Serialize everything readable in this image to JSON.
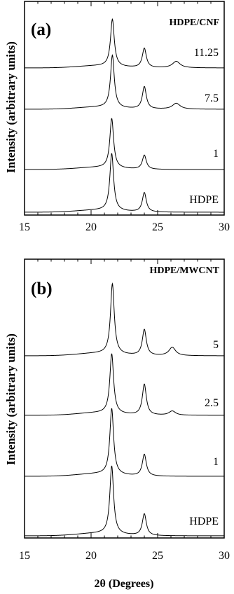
{
  "chart_data": [
    {
      "type": "line",
      "panel_label": "(a)",
      "title": "HDPE/CNF",
      "ylabel": "Intensity (arbitrary units)",
      "xlim": [
        15,
        30
      ],
      "xticks": [
        15,
        20,
        25,
        30
      ],
      "series": [
        {
          "name": "11.25",
          "peaks": [
            {
              "x": 21.6,
              "height": 0.8,
              "width": 0.17
            },
            {
              "x": 24.0,
              "height": 0.33,
              "width": 0.18
            },
            {
              "x": 26.4,
              "height": 0.11,
              "width": 0.35
            }
          ]
        },
        {
          "name": "7.5",
          "peaks": [
            {
              "x": 21.6,
              "height": 0.89,
              "width": 0.17
            },
            {
              "x": 24.0,
              "height": 0.38,
              "width": 0.18
            },
            {
              "x": 26.4,
              "height": 0.1,
              "width": 0.35
            }
          ]
        },
        {
          "name": "1",
          "peaks": [
            {
              "x": 21.55,
              "height": 0.84,
              "width": 0.17
            },
            {
              "x": 24.0,
              "height": 0.24,
              "width": 0.18
            }
          ]
        },
        {
          "name": "HDPE",
          "peaks": [
            {
              "x": 21.55,
              "height": 0.97,
              "width": 0.17
            },
            {
              "x": 24.0,
              "height": 0.33,
              "width": 0.18
            }
          ]
        }
      ]
    },
    {
      "type": "line",
      "panel_label": "(b)",
      "title": "HDPE/MWCNT",
      "ylabel": "Intensity (arbitrary units)",
      "xlabel": "2θ (Degrees)",
      "xlim": [
        15,
        30
      ],
      "xticks": [
        15,
        20,
        25,
        30
      ],
      "series": [
        {
          "name": "5",
          "peaks": [
            {
              "x": 21.6,
              "height": 1.0,
              "width": 0.17
            },
            {
              "x": 24.0,
              "height": 0.37,
              "width": 0.18
            },
            {
              "x": 26.1,
              "height": 0.12,
              "width": 0.3
            }
          ]
        },
        {
          "name": "2.5",
          "peaks": [
            {
              "x": 21.55,
              "height": 0.85,
              "width": 0.17
            },
            {
              "x": 24.0,
              "height": 0.44,
              "width": 0.18
            },
            {
              "x": 26.1,
              "height": 0.06,
              "width": 0.3
            }
          ]
        },
        {
          "name": "1",
          "peaks": [
            {
              "x": 21.55,
              "height": 0.94,
              "width": 0.17
            },
            {
              "x": 24.0,
              "height": 0.31,
              "width": 0.18
            }
          ]
        },
        {
          "name": "HDPE",
          "peaks": [
            {
              "x": 21.55,
              "height": 0.97,
              "width": 0.17
            },
            {
              "x": 24.0,
              "height": 0.31,
              "width": 0.18
            }
          ]
        }
      ]
    }
  ]
}
